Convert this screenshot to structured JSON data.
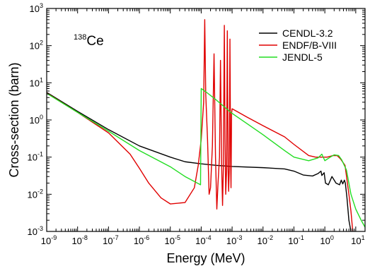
{
  "chart_data": {
    "type": "line",
    "xlabel": "Energy (MeV)",
    "ylabel": "Cross-section (barn)",
    "x_scale": "log",
    "y_scale": "log",
    "xlim": [
      1e-09,
      20
    ],
    "ylim": [
      0.001,
      1000
    ],
    "grid": false,
    "legend_position": "top-right",
    "annotation": {
      "isotope_mass": "138",
      "isotope_symbol": "Ce"
    },
    "x_ticks": [
      {
        "base": "10",
        "exp": "-9",
        "value": 1e-09
      },
      {
        "base": "10",
        "exp": "-8",
        "value": 1e-08
      },
      {
        "base": "10",
        "exp": "-7",
        "value": 1e-07
      },
      {
        "base": "10",
        "exp": "-6",
        "value": 1e-06
      },
      {
        "base": "10",
        "exp": "-5",
        "value": 1e-05
      },
      {
        "base": "10",
        "exp": "-4",
        "value": 0.0001
      },
      {
        "base": "10",
        "exp": "-3",
        "value": 0.001
      },
      {
        "base": "10",
        "exp": "-2",
        "value": 0.01
      },
      {
        "base": "10",
        "exp": "-1",
        "value": 0.1
      },
      {
        "base": "10",
        "exp": "0",
        "value": 1
      },
      {
        "base": "10",
        "exp": "1",
        "value": 10
      }
    ],
    "y_ticks": [
      {
        "base": "10",
        "exp": "-3",
        "value": 0.001
      },
      {
        "base": "10",
        "exp": "-2",
        "value": 0.01
      },
      {
        "base": "10",
        "exp": "-1",
        "value": 0.1
      },
      {
        "base": "10",
        "exp": "0",
        "value": 1
      },
      {
        "base": "10",
        "exp": "1",
        "value": 10
      },
      {
        "base": "10",
        "exp": "2",
        "value": 100
      },
      {
        "base": "10",
        "exp": "3",
        "value": 1000
      }
    ],
    "series": [
      {
        "name": "CENDL-3.2",
        "color": "#000000",
        "points": [
          [
            1e-09,
            5.5
          ],
          [
            1e-08,
            1.7
          ],
          [
            1e-07,
            0.55
          ],
          [
            1e-06,
            0.2
          ],
          [
            1e-05,
            0.1
          ],
          [
            3e-05,
            0.075
          ],
          [
            0.0001,
            0.066
          ],
          [
            0.0003,
            0.06
          ],
          [
            0.001,
            0.056
          ],
          [
            0.01,
            0.052
          ],
          [
            0.05,
            0.048
          ],
          [
            0.1,
            0.042
          ],
          [
            0.2,
            0.033
          ],
          [
            0.4,
            0.031
          ],
          [
            0.6,
            0.036
          ],
          [
            0.75,
            0.042
          ],
          [
            0.8,
            0.032
          ],
          [
            0.95,
            0.038
          ],
          [
            1.05,
            0.02
          ],
          [
            1.3,
            0.018
          ],
          [
            1.7,
            0.03
          ],
          [
            2.3,
            0.02
          ],
          [
            3.0,
            0.018
          ],
          [
            3.4,
            0.024
          ],
          [
            3.8,
            0.019
          ],
          [
            4.3,
            0.024
          ],
          [
            4.6,
            0.02
          ],
          [
            5.2,
            0.008
          ],
          [
            6.0,
            0.002
          ],
          [
            7.0,
            0.001
          ]
        ]
      },
      {
        "name": "ENDF/B-VIII",
        "color": "#e00000",
        "points": [
          [
            1e-09,
            5.3
          ],
          [
            1e-08,
            1.6
          ],
          [
            1e-07,
            0.45
          ],
          [
            5e-07,
            0.12
          ],
          [
            1e-06,
            0.05
          ],
          [
            2e-06,
            0.02
          ],
          [
            5e-06,
            0.008
          ],
          [
            1e-05,
            0.0055
          ],
          [
            3e-05,
            0.006
          ],
          [
            6e-05,
            0.015
          ],
          [
            8e-05,
            0.06
          ],
          [
            0.0001,
            0.3
          ],
          [
            0.00012,
            3
          ],
          [
            0.00013,
            500
          ],
          [
            0.00014,
            5
          ],
          [
            0.00016,
            0.3
          ],
          [
            0.00018,
            0.01
          ],
          [
            0.0002,
            0.015
          ],
          [
            0.00023,
            0.2
          ],
          [
            0.00026,
            60
          ],
          [
            0.00029,
            0.1
          ],
          [
            0.00032,
            0.004
          ],
          [
            0.00035,
            0.02
          ],
          [
            0.00039,
            0.1
          ],
          [
            0.00042,
            40
          ],
          [
            0.00046,
            0.05
          ],
          [
            0.00049,
            0.005
          ],
          [
            0.00052,
            0.05
          ],
          [
            0.00056,
            350
          ],
          [
            0.00059,
            0.3
          ],
          [
            0.00062,
            0.01
          ],
          [
            0.00066,
            0.04
          ],
          [
            0.0007,
            250
          ],
          [
            0.00074,
            0.05
          ],
          [
            0.00077,
            0.012
          ],
          [
            0.00081,
            0.05
          ],
          [
            0.00085,
            150
          ],
          [
            0.00089,
            0.1
          ],
          [
            0.00092,
            0.015
          ],
          [
            0.00096,
            1.5
          ],
          [
            0.001,
            2.0
          ],
          [
            0.003,
            1.2
          ],
          [
            0.01,
            0.7
          ],
          [
            0.05,
            0.35
          ],
          [
            0.1,
            0.22
          ],
          [
            0.3,
            0.11
          ],
          [
            0.5,
            0.1
          ],
          [
            0.8,
            0.1
          ],
          [
            1.2,
            0.1
          ],
          [
            1.8,
            0.11
          ],
          [
            2.5,
            0.11
          ],
          [
            3.2,
            0.09
          ],
          [
            4.5,
            0.06
          ],
          [
            6.0,
            0.01
          ],
          [
            7.0,
            0.0035
          ],
          [
            8.0,
            0.001
          ]
        ]
      },
      {
        "name": "JENDL-5",
        "color": "#22dd22",
        "points": [
          [
            1e-09,
            5.2
          ],
          [
            1e-08,
            1.6
          ],
          [
            1e-07,
            0.5
          ],
          [
            1e-06,
            0.15
          ],
          [
            1e-05,
            0.055
          ],
          [
            3e-05,
            0.03
          ],
          [
            9.5e-05,
            0.018
          ],
          [
            0.0001,
            7.0
          ],
          [
            0.00015,
            5.5
          ],
          [
            0.0003,
            3.5
          ],
          [
            0.001,
            1.5
          ],
          [
            0.003,
            0.8
          ],
          [
            0.01,
            0.4
          ],
          [
            0.05,
            0.15
          ],
          [
            0.1,
            0.1
          ],
          [
            0.3,
            0.08
          ],
          [
            0.6,
            0.095
          ],
          [
            0.8,
            0.12
          ],
          [
            1.0,
            0.08
          ],
          [
            1.5,
            0.1
          ],
          [
            2.0,
            0.115
          ],
          [
            2.8,
            0.11
          ],
          [
            3.5,
            0.085
          ],
          [
            5.0,
            0.045
          ],
          [
            7.0,
            0.01
          ],
          [
            10,
            0.004
          ],
          [
            15,
            0.002
          ],
          [
            20,
            0.0013
          ]
        ]
      }
    ]
  }
}
